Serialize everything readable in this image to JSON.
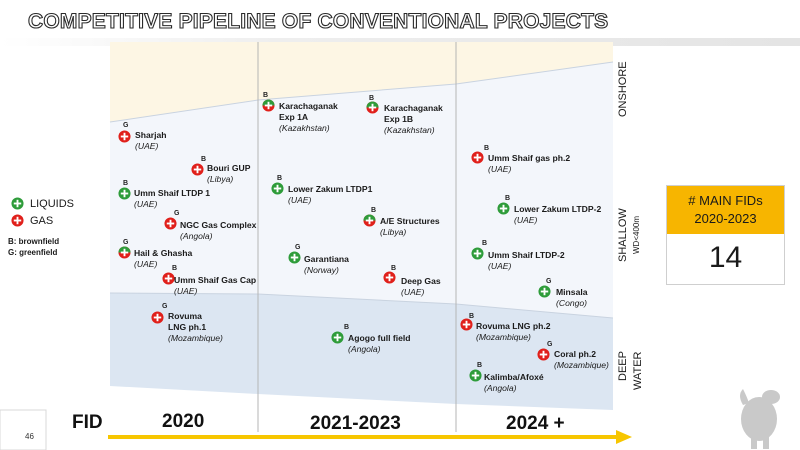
{
  "title": "COMPETITIVE PIPELINE OF CONVENTIONAL PROJECTS",
  "legend": {
    "liquids": "LIQUIDS",
    "gas": "GAS",
    "brownfield": "B: brownfield",
    "greenfield": "G: greenfield"
  },
  "zones": {
    "onshore": "ONSHORE",
    "shallow": "SHALLOW",
    "shallow_sub": "WD<400m",
    "deep_line1": "DEEP",
    "deep_line2": "WATER"
  },
  "fids": {
    "heading_line1": "# MAIN FIDs",
    "heading_line2": "2020-2023",
    "value": "14"
  },
  "timeline": {
    "fid": "FID",
    "p1": "2020",
    "p2": "2021-2023",
    "p3": "2024 +"
  },
  "page_number": "46",
  "colors": {
    "onshore": "#fdf6e4",
    "shallow": "#f3f6fb",
    "deep": "#dce6f2",
    "liquids": "#2e9c3a",
    "gas": "#e0201b",
    "accent": "#f7b500"
  },
  "projects": {
    "sharjah": {
      "name": "Sharjah",
      "country": "(UAE)",
      "badge": "G",
      "icon": "gas"
    },
    "bouri": {
      "name": "Bouri GUP",
      "country": "(Libya)",
      "badge": "B",
      "icon": "gas"
    },
    "umm_shaif_ltdp1": {
      "name": "Umm Shaif LTDP 1",
      "country": "(UAE)",
      "badge": "B",
      "icon": "liquids"
    },
    "ngc": {
      "name": "NGC Gas Complex",
      "country": "(Angola)",
      "badge": "G",
      "icon": "gas"
    },
    "hail": {
      "name": "Hail & Ghasha",
      "country": "(UAE)",
      "badge": "G",
      "icon": "mixed"
    },
    "umm_shaif_gascap": {
      "name": "Umm Shaif Gas Cap",
      "country": "(UAE)",
      "badge": "B",
      "icon": "gas"
    },
    "rovuma1_name": {
      "line1": "Rovuma",
      "line2": "LNG ph.1",
      "country": "(Mozambique)",
      "badge": "G",
      "icon": "gas"
    },
    "karach1a": {
      "line1": "Karachaganak",
      "line2": "Exp 1A",
      "country": "(Kazakhstan)",
      "badge": "B",
      "icon": "mixed"
    },
    "karach1b": {
      "line1": "Karachaganak",
      "line2": "Exp 1B",
      "country": "(Kazakhstan)",
      "badge": "B",
      "icon": "mixed"
    },
    "lower_zakum1": {
      "name": "Lower Zakum LTDP1",
      "country": "(UAE)",
      "badge": "B",
      "icon": "liquids"
    },
    "ae_structures": {
      "name": "A/E Structures",
      "country": "(Libya)",
      "badge": "B",
      "icon": "mixed"
    },
    "garantiana": {
      "name": "Garantiana",
      "country": "(Norway)",
      "badge": "G",
      "icon": "liquids"
    },
    "deep_gas": {
      "name": "Deep Gas",
      "country": "(UAE)",
      "badge": "B",
      "icon": "gas"
    },
    "agogo": {
      "name": "Agogo full field",
      "country": "(Angola)",
      "badge": "B",
      "icon": "liquids"
    },
    "umm_shaif_gas2": {
      "name": "Umm Shaif gas ph.2",
      "country": "(UAE)",
      "badge": "B",
      "icon": "gas"
    },
    "lower_zakum2": {
      "name": "Lower Zakum LTDP-2",
      "country": "(UAE)",
      "badge": "B",
      "icon": "liquids"
    },
    "umm_shaif_ltdp2": {
      "name": "Umm Shaif LTDP-2",
      "country": "(UAE)",
      "badge": "B",
      "icon": "liquids"
    },
    "minsala": {
      "name": "Minsala",
      "country": "(Congo)",
      "badge": "G",
      "icon": "liquids"
    },
    "rovuma2": {
      "name": "Rovuma LNG ph.2",
      "country": "(Mozambique)",
      "badge": "B",
      "icon": "gas"
    },
    "coral2": {
      "name": "Coral ph.2",
      "country": "(Mozambique)",
      "badge": "G",
      "icon": "gas"
    },
    "kalimba": {
      "name": "Kalimba/Afoxé",
      "country": "(Angola)",
      "badge": "B",
      "icon": "liquids"
    }
  }
}
